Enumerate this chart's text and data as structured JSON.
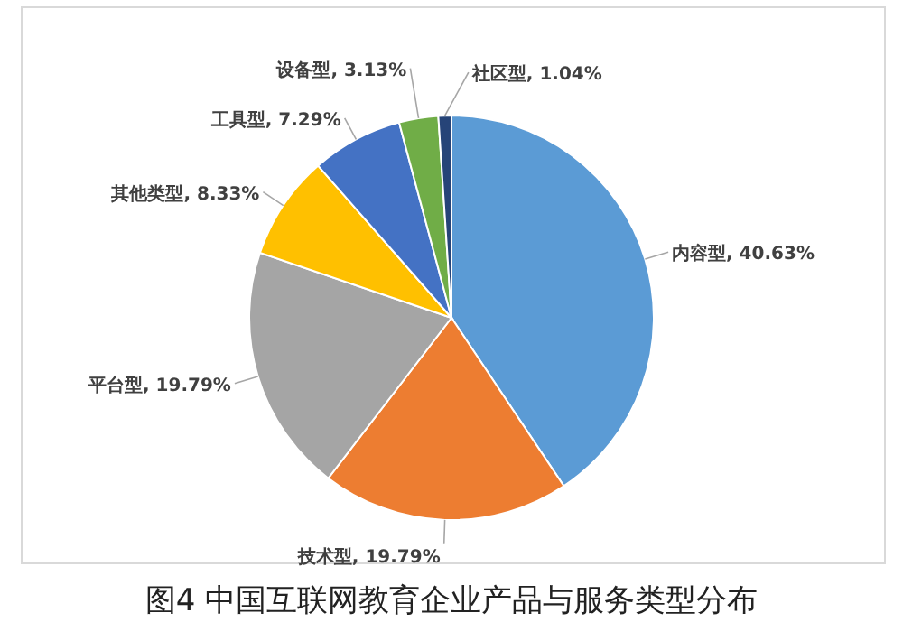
{
  "chart_data": {
    "type": "pie",
    "title": "图4  中国互联网教育企业产品与服务类型分布",
    "categories": [
      "内容型",
      "技术型",
      "平台型",
      "其他类型",
      "工具型",
      "设备型",
      "社区型"
    ],
    "values": [
      40.63,
      19.79,
      19.79,
      8.33,
      7.29,
      3.13,
      1.04
    ],
    "value_labels": [
      ", 40.63%",
      ", 19.79%",
      ", 19.79%",
      ", 8.33%",
      ", 7.29%",
      ", 3.13%",
      ", 1.04%"
    ],
    "colors": [
      "#5b9bd5",
      "#ed7d31",
      "#a5a5a5",
      "#ffc000",
      "#4472c4",
      "#70ad47",
      "#264478"
    ]
  }
}
